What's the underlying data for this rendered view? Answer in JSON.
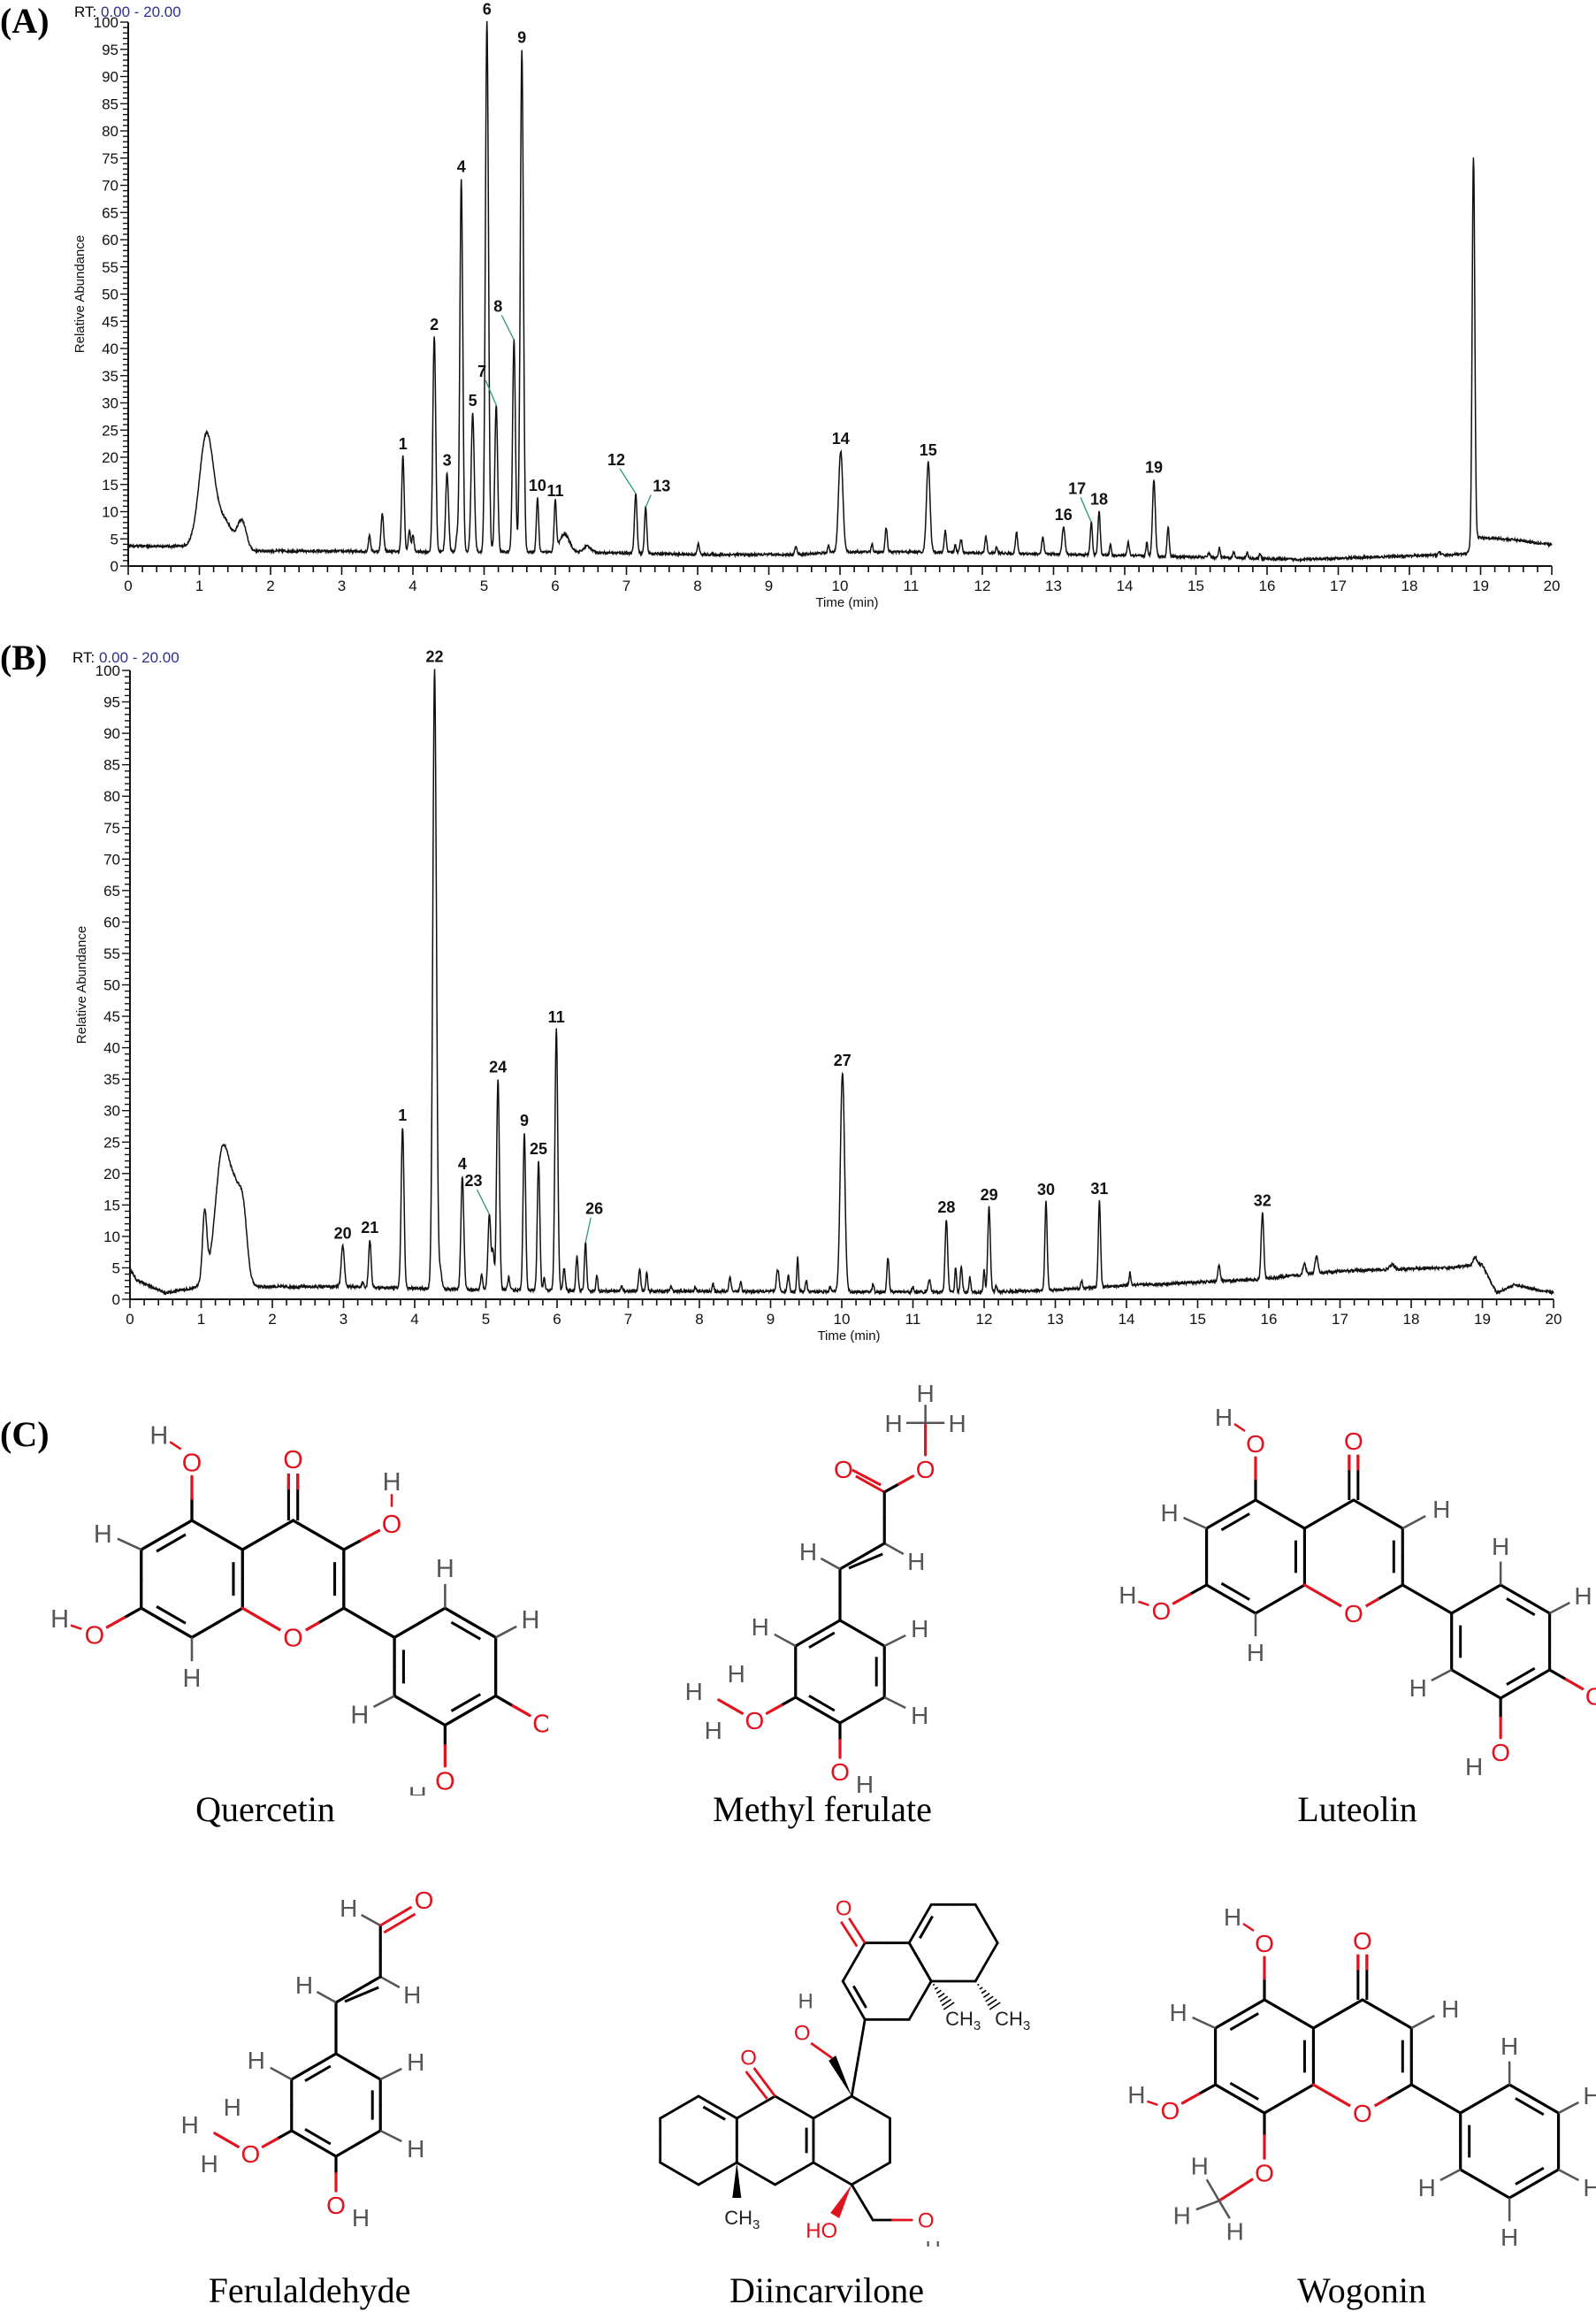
{
  "panels": {
    "A": {
      "label": "(A)",
      "rt_prefix": "RT:",
      "rt_range": "0.00 - 20.00"
    },
    "B": {
      "label": "(B)",
      "rt_prefix": "RT:",
      "rt_range": "0.00 - 20.00"
    },
    "C": {
      "label": "(C)"
    }
  },
  "colors": {
    "trace": "#111111",
    "rt_range": "#2f2f8f",
    "leader": "#2e9b6e",
    "oxygen": "#e0141e",
    "hydrogen": "#555555",
    "bond": "#000000"
  },
  "chart_data": [
    {
      "type": "line",
      "title": "(A)",
      "subtitle": "RT: 0.00 - 20.00",
      "xlabel": "Time (min)",
      "ylabel": "Relative Abundance",
      "xlim": [
        0,
        20
      ],
      "ylim": [
        0,
        100
      ],
      "x_ticks": [
        0,
        1,
        2,
        3,
        4,
        5,
        6,
        7,
        8,
        9,
        10,
        11,
        12,
        13,
        14,
        15,
        16,
        17,
        18,
        19,
        20
      ],
      "y_ticks": [
        0,
        5,
        10,
        15,
        20,
        25,
        30,
        35,
        40,
        45,
        50,
        55,
        60,
        65,
        70,
        75,
        80,
        85,
        90,
        95,
        100
      ],
      "grid": false,
      "baseline": [
        [
          0,
          3.7
        ],
        [
          0.9,
          3.6
        ],
        [
          1.75,
          2.8
        ],
        [
          3.3,
          2.7
        ],
        [
          6.6,
          2.5
        ],
        [
          8,
          2.1
        ],
        [
          9.4,
          2.1
        ],
        [
          10,
          2.6
        ],
        [
          11,
          2.6
        ],
        [
          13,
          2.2
        ],
        [
          14.5,
          1.8
        ],
        [
          16.5,
          1.2
        ],
        [
          18.8,
          2.2
        ],
        [
          18.95,
          5.3
        ],
        [
          19.5,
          4.8
        ],
        [
          20,
          3.9
        ]
      ],
      "peaks": [
        {
          "x": 1.1,
          "y": 20.5,
          "w": 0.1,
          "label": ""
        },
        {
          "x": 1.35,
          "y": 5,
          "w": 0.12,
          "label": ""
        },
        {
          "x": 1.6,
          "y": 5,
          "w": 0.06,
          "label": ""
        },
        {
          "x": 3.39,
          "y": 3,
          "w": 0.015,
          "label": ""
        },
        {
          "x": 3.57,
          "y": 7,
          "w": 0.018,
          "label": ""
        },
        {
          "x": 3.86,
          "y": 17.5,
          "w": 0.018,
          "label": "1"
        },
        {
          "x": 3.95,
          "y": 4,
          "w": 0.015,
          "label": ""
        },
        {
          "x": 4.0,
          "y": 3,
          "w": 0.015,
          "label": ""
        },
        {
          "x": 4.3,
          "y": 39.5,
          "w": 0.02,
          "label": "2"
        },
        {
          "x": 4.48,
          "y": 14.5,
          "w": 0.02,
          "label": "3"
        },
        {
          "x": 4.62,
          "y": 3,
          "w": 0.015,
          "label": ""
        },
        {
          "x": 4.68,
          "y": 68.5,
          "w": 0.02,
          "label": "4"
        },
        {
          "x": 4.84,
          "y": 25.5,
          "w": 0.022,
          "label": "5"
        },
        {
          "x": 5.04,
          "y": 97.5,
          "w": 0.022,
          "label": "6"
        },
        {
          "x": 5.17,
          "y": 27,
          "w": 0.02,
          "label": "7"
        },
        {
          "x": 5.42,
          "y": 39,
          "w": 0.02,
          "label": "8"
        },
        {
          "x": 5.53,
          "y": 92.3,
          "w": 0.022,
          "label": "9"
        },
        {
          "x": 5.75,
          "y": 10,
          "w": 0.016,
          "label": "10"
        },
        {
          "x": 6.0,
          "y": 9,
          "w": 0.016,
          "label": "11"
        },
        {
          "x": 6.13,
          "y": 3.3,
          "w": 0.07,
          "label": ""
        },
        {
          "x": 6.45,
          "y": 1.2,
          "w": 0.05,
          "label": ""
        },
        {
          "x": 7.13,
          "y": 11,
          "w": 0.018,
          "label": "12"
        },
        {
          "x": 7.27,
          "y": 8.5,
          "w": 0.016,
          "label": "13"
        },
        {
          "x": 8.01,
          "y": 2,
          "w": 0.015,
          "label": ""
        },
        {
          "x": 9.38,
          "y": 1.5,
          "w": 0.015,
          "label": ""
        },
        {
          "x": 9.84,
          "y": 1.5,
          "w": 0.012,
          "label": ""
        },
        {
          "x": 10.01,
          "y": 18.5,
          "w": 0.03,
          "label": "14"
        },
        {
          "x": 10.45,
          "y": 1.5,
          "w": 0.012,
          "label": ""
        },
        {
          "x": 10.65,
          "y": 4.5,
          "w": 0.015,
          "label": ""
        },
        {
          "x": 11.24,
          "y": 16.5,
          "w": 0.025,
          "label": "15"
        },
        {
          "x": 11.48,
          "y": 4,
          "w": 0.015,
          "label": ""
        },
        {
          "x": 11.62,
          "y": 1.5,
          "w": 0.012,
          "label": ""
        },
        {
          "x": 11.7,
          "y": 2.5,
          "w": 0.015,
          "label": ""
        },
        {
          "x": 12.05,
          "y": 3,
          "w": 0.015,
          "label": ""
        },
        {
          "x": 12.2,
          "y": 1.2,
          "w": 0.012,
          "label": ""
        },
        {
          "x": 12.48,
          "y": 3.9,
          "w": 0.015,
          "label": ""
        },
        {
          "x": 12.85,
          "y": 3.0,
          "w": 0.015,
          "label": ""
        },
        {
          "x": 13.14,
          "y": 5,
          "w": 0.02,
          "label": "16"
        },
        {
          "x": 13.53,
          "y": 6,
          "w": 0.015,
          "label": "17"
        },
        {
          "x": 13.64,
          "y": 8,
          "w": 0.016,
          "label": "18"
        },
        {
          "x": 13.8,
          "y": 2,
          "w": 0.012,
          "label": ""
        },
        {
          "x": 14.05,
          "y": 2.4,
          "w": 0.015,
          "label": ""
        },
        {
          "x": 14.31,
          "y": 2.5,
          "w": 0.012,
          "label": ""
        },
        {
          "x": 14.41,
          "y": 14,
          "w": 0.02,
          "label": "19"
        },
        {
          "x": 14.61,
          "y": 5.5,
          "w": 0.015,
          "label": ""
        },
        {
          "x": 15.18,
          "y": 0.8,
          "w": 0.015,
          "label": ""
        },
        {
          "x": 15.33,
          "y": 1.8,
          "w": 0.012,
          "label": ""
        },
        {
          "x": 15.53,
          "y": 1.2,
          "w": 0.012,
          "label": ""
        },
        {
          "x": 15.72,
          "y": 1.0,
          "w": 0.012,
          "label": ""
        },
        {
          "x": 15.9,
          "y": 0.9,
          "w": 0.012,
          "label": ""
        },
        {
          "x": 18.42,
          "y": 0.6,
          "w": 0.015,
          "label": ""
        },
        {
          "x": 18.9,
          "y": 71,
          "w": 0.018,
          "label": ""
        }
      ],
      "label_leaders": [
        "7",
        "8",
        "12",
        "13",
        "17"
      ]
    },
    {
      "type": "line",
      "title": "(B)",
      "subtitle": "RT: 0.00 - 20.00",
      "xlabel": "Time (min)",
      "ylabel": "Relative Abundance",
      "xlim": [
        0,
        20
      ],
      "ylim": [
        0,
        100
      ],
      "x_ticks": [
        0,
        1,
        2,
        3,
        4,
        5,
        6,
        7,
        8,
        9,
        10,
        11,
        12,
        13,
        14,
        15,
        16,
        17,
        18,
        19,
        20
      ],
      "y_ticks": [
        0,
        5,
        10,
        15,
        20,
        25,
        30,
        35,
        40,
        45,
        50,
        55,
        60,
        65,
        70,
        75,
        80,
        85,
        90,
        95,
        100
      ],
      "grid": false,
      "baseline": [
        [
          0,
          4.8
        ],
        [
          0.1,
          3
        ],
        [
          0.5,
          1.0
        ],
        [
          0.9,
          1.8
        ],
        [
          1.0,
          2.5
        ],
        [
          1.85,
          2.0
        ],
        [
          3.0,
          2.0
        ],
        [
          5,
          1.5
        ],
        [
          7,
          1.3
        ],
        [
          10,
          1.2
        ],
        [
          12,
          1.1
        ],
        [
          13,
          1.5
        ],
        [
          14,
          2.2
        ],
        [
          15,
          2.7
        ],
        [
          15.8,
          3.1
        ],
        [
          16.3,
          3.7
        ],
        [
          17,
          4.5
        ],
        [
          18.5,
          5
        ],
        [
          19.0,
          5.5
        ],
        [
          19.2,
          1.0
        ],
        [
          19.45,
          2.3
        ],
        [
          20,
          1.0
        ]
      ],
      "peaks": [
        {
          "x": 1.05,
          "y": 11,
          "w": 0.03,
          "label": ""
        },
        {
          "x": 1.3,
          "y": 21,
          "w": 0.1,
          "label": ""
        },
        {
          "x": 1.5,
          "y": 13,
          "w": 0.09,
          "label": ""
        },
        {
          "x": 1.6,
          "y": 6,
          "w": 0.05,
          "label": ""
        },
        {
          "x": 2.99,
          "y": 6.5,
          "w": 0.022,
          "label": "20"
        },
        {
          "x": 3.27,
          "y": 0.8,
          "w": 0.015,
          "label": ""
        },
        {
          "x": 3.37,
          "y": 7.5,
          "w": 0.018,
          "label": "21"
        },
        {
          "x": 3.83,
          "y": 25.5,
          "w": 0.02,
          "label": "1"
        },
        {
          "x": 4.28,
          "y": 98.5,
          "w": 0.025,
          "label": "22"
        },
        {
          "x": 4.36,
          "y": 3,
          "w": 0.02,
          "label": ""
        },
        {
          "x": 4.67,
          "y": 18,
          "w": 0.02,
          "label": "4"
        },
        {
          "x": 4.94,
          "y": 2.5,
          "w": 0.015,
          "label": ""
        },
        {
          "x": 5.05,
          "y": 12,
          "w": 0.02,
          "label": "23"
        },
        {
          "x": 5.1,
          "y": 6,
          "w": 0.015,
          "label": ""
        },
        {
          "x": 5.17,
          "y": 33.5,
          "w": 0.02,
          "label": "24"
        },
        {
          "x": 5.32,
          "y": 2,
          "w": 0.015,
          "label": ""
        },
        {
          "x": 5.54,
          "y": 25,
          "w": 0.018,
          "label": "9"
        },
        {
          "x": 5.74,
          "y": 20.5,
          "w": 0.018,
          "label": "25"
        },
        {
          "x": 5.82,
          "y": 2,
          "w": 0.012,
          "label": ""
        },
        {
          "x": 5.99,
          "y": 41.5,
          "w": 0.02,
          "label": "11"
        },
        {
          "x": 6.1,
          "y": 3.5,
          "w": 0.015,
          "label": ""
        },
        {
          "x": 6.28,
          "y": 5.5,
          "w": 0.015,
          "label": ""
        },
        {
          "x": 6.4,
          "y": 7.7,
          "w": 0.015,
          "label": "26"
        },
        {
          "x": 6.56,
          "y": 2.5,
          "w": 0.012,
          "label": ""
        },
        {
          "x": 6.91,
          "y": 0.8,
          "w": 0.012,
          "label": ""
        },
        {
          "x": 7.16,
          "y": 3.6,
          "w": 0.015,
          "label": ""
        },
        {
          "x": 7.26,
          "y": 3,
          "w": 0.012,
          "label": ""
        },
        {
          "x": 7.6,
          "y": 0.8,
          "w": 0.012,
          "label": ""
        },
        {
          "x": 7.94,
          "y": 0.8,
          "w": 0.012,
          "label": ""
        },
        {
          "x": 8.19,
          "y": 1.2,
          "w": 0.012,
          "label": ""
        },
        {
          "x": 8.43,
          "y": 2.3,
          "w": 0.015,
          "label": ""
        },
        {
          "x": 8.58,
          "y": 1.5,
          "w": 0.012,
          "label": ""
        },
        {
          "x": 9.1,
          "y": 3.5,
          "w": 0.018,
          "label": ""
        },
        {
          "x": 9.25,
          "y": 2.5,
          "w": 0.015,
          "label": ""
        },
        {
          "x": 9.38,
          "y": 5.5,
          "w": 0.012,
          "label": ""
        },
        {
          "x": 9.5,
          "y": 1.8,
          "w": 0.012,
          "label": ""
        },
        {
          "x": 9.84,
          "y": 0.9,
          "w": 0.012,
          "label": ""
        },
        {
          "x": 10.01,
          "y": 34.8,
          "w": 0.03,
          "label": "27"
        },
        {
          "x": 10.44,
          "y": 1.3,
          "w": 0.012,
          "label": ""
        },
        {
          "x": 10.65,
          "y": 5.5,
          "w": 0.015,
          "label": ""
        },
        {
          "x": 11.0,
          "y": 0.8,
          "w": 0.012,
          "label": ""
        },
        {
          "x": 11.23,
          "y": 2.0,
          "w": 0.018,
          "label": ""
        },
        {
          "x": 11.47,
          "y": 11.5,
          "w": 0.018,
          "label": "28"
        },
        {
          "x": 11.6,
          "y": 4,
          "w": 0.012,
          "label": ""
        },
        {
          "x": 11.68,
          "y": 4,
          "w": 0.015,
          "label": ""
        },
        {
          "x": 11.8,
          "y": 2.5,
          "w": 0.012,
          "label": ""
        },
        {
          "x": 12.0,
          "y": 3.5,
          "w": 0.012,
          "label": ""
        },
        {
          "x": 12.07,
          "y": 13.5,
          "w": 0.018,
          "label": "29"
        },
        {
          "x": 12.17,
          "y": 1,
          "w": 0.012,
          "label": ""
        },
        {
          "x": 12.87,
          "y": 14,
          "w": 0.016,
          "label": "30"
        },
        {
          "x": 13.37,
          "y": 1.2,
          "w": 0.012,
          "label": ""
        },
        {
          "x": 13.62,
          "y": 13.7,
          "w": 0.016,
          "label": "31"
        },
        {
          "x": 14.05,
          "y": 2,
          "w": 0.012,
          "label": ""
        },
        {
          "x": 15.3,
          "y": 2.5,
          "w": 0.016,
          "label": ""
        },
        {
          "x": 15.91,
          "y": 10.5,
          "w": 0.018,
          "label": "32"
        },
        {
          "x": 16.5,
          "y": 1.8,
          "w": 0.02,
          "label": ""
        },
        {
          "x": 16.67,
          "y": 2.7,
          "w": 0.02,
          "label": ""
        },
        {
          "x": 17.73,
          "y": 0.8,
          "w": 0.03,
          "label": ""
        },
        {
          "x": 18.9,
          "y": 1.2,
          "w": 0.03,
          "label": ""
        }
      ],
      "label_leaders": [
        "23",
        "26"
      ]
    }
  ],
  "compounds": [
    {
      "name": "Quercetin"
    },
    {
      "name": "Methyl ferulate"
    },
    {
      "name": "Luteolin"
    },
    {
      "name": "Ferulaldehyde"
    },
    {
      "name": "Diincarvilone"
    },
    {
      "name": "Wogonin"
    }
  ],
  "atoms": {
    "H": "H",
    "O": "O",
    "CH3": "CH",
    "sub3": "3",
    "HO": "HO"
  }
}
